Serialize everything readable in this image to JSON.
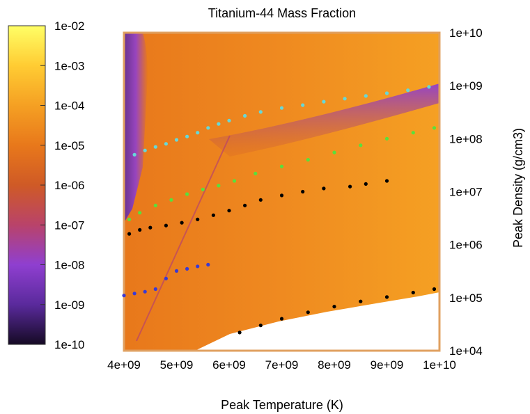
{
  "chart_data": {
    "type": "heatmap",
    "title": "Titanium-44 Mass Fraction",
    "xlabel": "Peak Temperature (K)",
    "ylabel": "Peak Density (g/cm3)",
    "x_scale": "linear",
    "y_scale": "log",
    "xlim": [
      4000000000.0,
      10000000000.0
    ],
    "ylim": [
      10000.0,
      10000000000.0
    ],
    "x_ticks": [
      "4e+09",
      "5e+09",
      "6e+09",
      "7e+09",
      "8e+09",
      "9e+09",
      "1e+10"
    ],
    "x_tick_values": [
      4000000000.0,
      5000000000.0,
      6000000000.0,
      7000000000.0,
      8000000000.0,
      9000000000.0,
      10000000000.0
    ],
    "y_ticks": [
      "1e+04",
      "1e+05",
      "1e+06",
      "1e+07",
      "1e+08",
      "1e+09",
      "1e+10"
    ],
    "y_tick_values": [
      10000.0,
      100000.0,
      1000000.0,
      10000000.0,
      100000000.0,
      1000000000.0,
      10000000000.0
    ],
    "colorbar": {
      "scale": "log",
      "range": [
        1e-10,
        0.01
      ],
      "tick_labels": [
        "1e-02",
        "1e-03",
        "1e-04",
        "1e-05",
        "1e-06",
        "1e-07",
        "1e-08",
        "1e-09",
        "1e-10"
      ],
      "colors": [
        "#ffff66",
        "#ffcc33",
        "#f5a023",
        "#e8781b",
        "#cf5a26",
        "#b9436a",
        "#8f3fd0",
        "#5a2a9c",
        "#150a24"
      ]
    },
    "grid": false,
    "overlays": [
      {
        "color": "#66d8d8",
        "points": [
          [
            4200000000.0,
            50000000.0
          ],
          [
            4400000000.0,
            60000000.0
          ],
          [
            4600000000.0,
            70000000.0
          ],
          [
            4800000000.0,
            80000000.0
          ],
          [
            5000000000.0,
            95000000.0
          ],
          [
            5200000000.0,
            110000000.0
          ],
          [
            5400000000.0,
            130000000.0
          ],
          [
            5600000000.0,
            160000000.0
          ],
          [
            5800000000.0,
            190000000.0
          ],
          [
            6000000000.0,
            220000000.0
          ],
          [
            6300000000.0,
            270000000.0
          ],
          [
            6600000000.0,
            320000000.0
          ],
          [
            7000000000.0,
            380000000.0
          ],
          [
            7400000000.0,
            430000000.0
          ],
          [
            7800000000.0,
            500000000.0
          ],
          [
            8200000000.0,
            570000000.0
          ],
          [
            8600000000.0,
            640000000.0
          ],
          [
            9000000000.0,
            720000000.0
          ],
          [
            9400000000.0,
            820000000.0
          ],
          [
            9800000000.0,
            950000000.0
          ]
        ]
      },
      {
        "color": "#59e03c",
        "points": [
          [
            4100000000.0,
            3000000.0
          ],
          [
            4300000000.0,
            4000000.0
          ],
          [
            4600000000.0,
            5500000.0
          ],
          [
            4900000000.0,
            7000000.0
          ],
          [
            5200000000.0,
            9000000.0
          ],
          [
            5500000000.0,
            11000000.0
          ],
          [
            5800000000.0,
            13000000.0
          ],
          [
            6100000000.0,
            16000000.0
          ],
          [
            6500000000.0,
            22000000.0
          ],
          [
            7000000000.0,
            30000000.0
          ],
          [
            7500000000.0,
            40000000.0
          ],
          [
            8000000000.0,
            55000000.0
          ],
          [
            8500000000.0,
            75000000.0
          ],
          [
            9000000000.0,
            100000000.0
          ],
          [
            9500000000.0,
            130000000.0
          ],
          [
            9900000000.0,
            160000000.0
          ]
        ]
      },
      {
        "color": "#000000",
        "points": [
          [
            4100000000.0,
            1600000.0
          ],
          [
            4300000000.0,
            1900000.0
          ],
          [
            4500000000.0,
            2100000.0
          ],
          [
            4800000000.0,
            2300000.0
          ],
          [
            5100000000.0,
            2600000.0
          ],
          [
            5400000000.0,
            3000000.0
          ],
          [
            5700000000.0,
            3600000.0
          ],
          [
            6000000000.0,
            4400000.0
          ],
          [
            6300000000.0,
            5500000.0
          ],
          [
            6600000000.0,
            7000000.0
          ],
          [
            7000000000.0,
            8500000.0
          ],
          [
            7400000000.0,
            10000000.0
          ],
          [
            7800000000.0,
            11500000.0
          ],
          [
            8300000000.0,
            12500000.0
          ],
          [
            8600000000.0,
            14000000.0
          ],
          [
            9000000000.0,
            16000000.0
          ]
        ]
      },
      {
        "color": "#3a3ad4",
        "points": [
          [
            4000000000.0,
            110000.0
          ],
          [
            4200000000.0,
            120000.0
          ],
          [
            4400000000.0,
            130000.0
          ],
          [
            4600000000.0,
            145000.0
          ],
          [
            4800000000.0,
            230000.0
          ],
          [
            5000000000.0,
            320000.0
          ],
          [
            5200000000.0,
            350000.0
          ],
          [
            5400000000.0,
            390000.0
          ],
          [
            5600000000.0,
            420000.0
          ]
        ]
      },
      {
        "color": "#000000",
        "points": [
          [
            6200000000.0,
            22000.0
          ],
          [
            6600000000.0,
            30000.0
          ],
          [
            7000000000.0,
            40000.0
          ],
          [
            7500000000.0,
            53000.0
          ],
          [
            8000000000.0,
            68000.0
          ],
          [
            8500000000.0,
            85000.0
          ],
          [
            9000000000.0,
            103000.0
          ],
          [
            9500000000.0,
            125000.0
          ],
          [
            9900000000.0,
            145000.0
          ]
        ]
      }
    ]
  }
}
